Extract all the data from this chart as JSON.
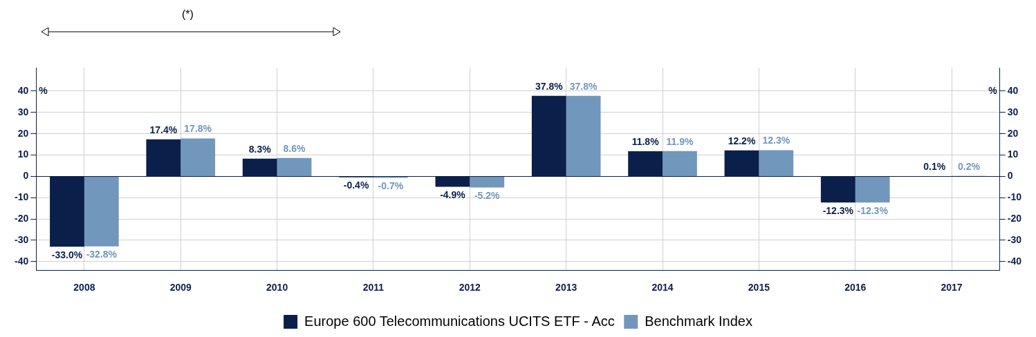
{
  "chart_data": {
    "type": "bar",
    "categories": [
      "2008",
      "2009",
      "2010",
      "2011",
      "2012",
      "2013",
      "2014",
      "2015",
      "2016",
      "2017"
    ],
    "series": [
      {
        "name": "Europe 600 Telecommunications UCITS ETF - Acc",
        "color": "#0b1f4b",
        "values": [
          -33.0,
          17.4,
          8.3,
          -0.4,
          -4.9,
          37.8,
          11.8,
          12.2,
          -12.3,
          0.1
        ],
        "value_labels": [
          "-33.0%",
          "17.4%",
          "8.3%",
          "-0.4%",
          "-4.9%",
          "37.8%",
          "11.8%",
          "12.2%",
          "-12.3%",
          "0.1%"
        ]
      },
      {
        "name": "Benchmark Index",
        "color": "#7297bd",
        "values": [
          -32.8,
          17.8,
          8.6,
          -0.7,
          -5.2,
          37.8,
          11.9,
          12.3,
          -12.3,
          0.2
        ],
        "value_labels": [
          "-32.8%",
          "17.8%",
          "8.6%",
          "-0.7%",
          "-5.2%",
          "37.8%",
          "11.9%",
          "12.3%",
          "-12.3%",
          "0.2%"
        ]
      }
    ],
    "ylim": [
      -44,
      51
    ],
    "yticks": [
      -40,
      -30,
      -20,
      -10,
      0,
      10,
      20,
      30,
      40
    ],
    "y2lim": [
      -44,
      51
    ],
    "y2ticks": [
      -40,
      -30,
      -20,
      -10,
      0,
      10,
      20,
      30,
      40
    ],
    "ylabel": "%",
    "y2label": "%",
    "annotations": [
      "(*)"
    ],
    "grid": true,
    "legend": "bottom"
  }
}
